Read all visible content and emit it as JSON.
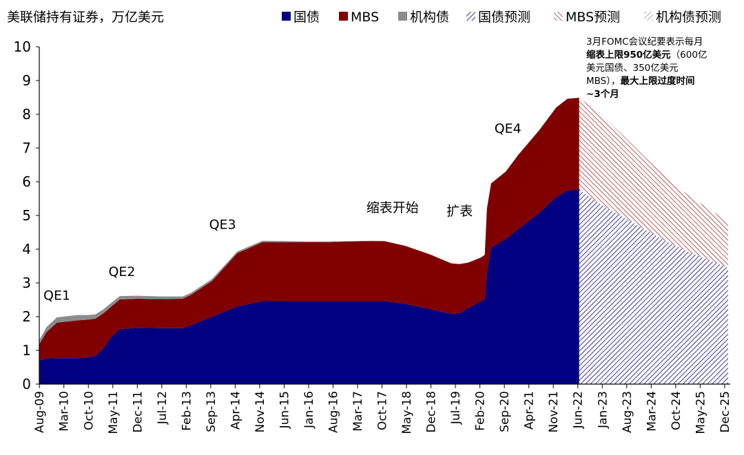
{
  "chart_data": {
    "type": "area",
    "title": "美联储持有证券，万亿美元",
    "ylim": [
      0,
      10
    ],
    "yticks": [
      0,
      1,
      2,
      3,
      4,
      5,
      6,
      7,
      8,
      9,
      10
    ],
    "xlim": [
      2009.58,
      2026.05
    ],
    "x_tick_labels": [
      "Aug-09",
      "Mar-10",
      "Oct-10",
      "May-11",
      "Dec-11",
      "Jul-12",
      "Feb-13",
      "Sep-13",
      "Apr-14",
      "Nov-14",
      "Jun-15",
      "Jan-16",
      "Aug-16",
      "Mar-17",
      "Oct-17",
      "May-18",
      "Dec-18",
      "Jul-19",
      "Feb-20",
      "Sep-20",
      "Apr-21",
      "Nov-21",
      "Jun-22",
      "Jan-23",
      "Aug-23",
      "Mar-24",
      "Oct-24",
      "May-25",
      "Dec-25"
    ],
    "legend": [
      {
        "name": "国债",
        "color": "#000080",
        "style": "solid"
      },
      {
        "name": "MBS",
        "color": "#800000",
        "style": "solid"
      },
      {
        "name": "机构债",
        "color": "#808080",
        "style": "solid"
      },
      {
        "name": "国债预测",
        "color": "#000080",
        "style": "hatched"
      },
      {
        "name": "MBS预测",
        "color": "#800000",
        "style": "hatched"
      },
      {
        "name": "机构债预测",
        "color": "#808080",
        "style": "hatched"
      }
    ],
    "series": [
      {
        "name": "国债",
        "x": [
          2009.58,
          2009.75,
          2010.0,
          2010.5,
          2010.75,
          2010.92,
          2011.1,
          2011.3,
          2011.5,
          2011.92,
          2012.5,
          2013.0,
          2013.2,
          2013.7,
          2014.3,
          2014.9,
          2015.5,
          2016.0,
          2016.5,
          2017.0,
          2017.5,
          2017.8,
          2018.3,
          2018.9,
          2019.4,
          2019.6,
          2019.8,
          2020.1,
          2020.2,
          2020.25,
          2020.35,
          2020.7,
          2021.0,
          2021.5,
          2021.9,
          2022.17,
          2022.45
        ],
        "values": [
          0.7,
          0.76,
          0.77,
          0.77,
          0.79,
          0.84,
          1.05,
          1.4,
          1.63,
          1.67,
          1.66,
          1.66,
          1.75,
          2.0,
          2.3,
          2.46,
          2.46,
          2.46,
          2.46,
          2.46,
          2.46,
          2.46,
          2.38,
          2.22,
          2.08,
          2.1,
          2.25,
          2.45,
          2.52,
          3.3,
          4.05,
          4.3,
          4.6,
          5.08,
          5.55,
          5.74,
          5.77
        ]
      },
      {
        "name": "MBS",
        "x": [
          2009.58,
          2009.75,
          2010.0,
          2010.5,
          2010.75,
          2010.92,
          2011.1,
          2011.3,
          2011.5,
          2011.92,
          2012.5,
          2013.0,
          2013.2,
          2013.7,
          2014.3,
          2014.9,
          2015.5,
          2016.0,
          2016.5,
          2017.0,
          2017.5,
          2017.8,
          2018.3,
          2018.9,
          2019.4,
          2019.6,
          2019.8,
          2020.1,
          2020.2,
          2020.25,
          2020.35,
          2020.7,
          2021.0,
          2021.5,
          2021.9,
          2022.17,
          2022.45
        ],
        "values": [
          0.48,
          0.78,
          1.05,
          1.12,
          1.12,
          1.1,
          1.04,
          0.9,
          0.88,
          0.86,
          0.86,
          0.87,
          0.9,
          1.06,
          1.58,
          1.75,
          1.75,
          1.75,
          1.75,
          1.77,
          1.78,
          1.78,
          1.72,
          1.62,
          1.5,
          1.46,
          1.35,
          1.3,
          1.31,
          1.9,
          1.9,
          2.0,
          2.2,
          2.45,
          2.65,
          2.72,
          2.72
        ]
      },
      {
        "name": "机构债",
        "x": [
          2009.58,
          2009.75,
          2010.0,
          2010.5,
          2010.75,
          2010.92,
          2011.1,
          2011.3,
          2011.5,
          2011.92,
          2012.5,
          2013.0,
          2013.2,
          2013.7,
          2014.3,
          2014.9,
          2015.5,
          2016.0,
          2016.5,
          2017.0,
          2017.5,
          2017.8,
          2018.3,
          2018.9,
          2019.4,
          2019.6,
          2019.8,
          2020.1,
          2020.2,
          2020.25,
          2020.35,
          2020.7,
          2021.0,
          2021.5,
          2021.9,
          2022.17,
          2022.45
        ],
        "values": [
          0.12,
          0.15,
          0.16,
          0.16,
          0.14,
          0.13,
          0.12,
          0.11,
          0.1,
          0.09,
          0.08,
          0.07,
          0.06,
          0.06,
          0.05,
          0.04,
          0.03,
          0.02,
          0.02,
          0.01,
          0.01,
          0.005,
          0.003,
          0.002,
          0.002,
          0.002,
          0.002,
          0.002,
          0.002,
          0.002,
          0.002,
          0.002,
          0.002,
          0.002,
          0.002,
          0.002,
          0.002
        ]
      },
      {
        "name": "国债预测",
        "x": [
          2022.45,
          2023.0,
          2023.5,
          2024.0,
          2024.5,
          2025.0,
          2025.5,
          2026.0
        ],
        "values": [
          5.77,
          5.3,
          4.95,
          4.6,
          4.25,
          3.95,
          3.7,
          3.45
        ]
      },
      {
        "name": "MBS预测",
        "x": [
          2022.45,
          2023.0,
          2023.5,
          2024.0,
          2024.5,
          2025.0,
          2025.5,
          2026.0
        ],
        "values": [
          2.72,
          2.67,
          2.42,
          2.15,
          1.9,
          1.7,
          1.53,
          1.37
        ]
      },
      {
        "name": "机构债预测",
        "x": [
          2022.45,
          2023.0,
          2023.5,
          2024.0,
          2024.5,
          2025.0,
          2025.5,
          2026.0
        ],
        "values": [
          0.002,
          0.002,
          0.002,
          0.002,
          0.002,
          0.002,
          0.002,
          0.002
        ]
      }
    ],
    "annotations": [
      {
        "text": "QE1",
        "x": 2010.0,
        "y": 2.5
      },
      {
        "text": "QE2",
        "x": 2011.55,
        "y": 3.2
      },
      {
        "text": "QE3",
        "x": 2013.95,
        "y": 4.6
      },
      {
        "text": "缩表开始",
        "x": 2018.0,
        "y": 5.1
      },
      {
        "text": "扩表",
        "x": 2019.6,
        "y": 5.0
      },
      {
        "text": "QE4",
        "x": 2020.75,
        "y": 7.45
      }
    ],
    "note": {
      "lines": [
        [
          {
            "t": "3月FOMC会议纪要表示每月",
            "b": false
          }
        ],
        [
          {
            "t": "缩表上限950亿美元",
            "b": true
          },
          {
            "t": "（600亿",
            "b": false
          }
        ],
        [
          {
            "t": "美元国债、350亿美元",
            "b": false
          }
        ],
        [
          {
            "t": "MBS），",
            "b": false
          },
          {
            "t": "最大上限过度时间",
            "b": true
          }
        ],
        [
          {
            "t": "~3个月",
            "b": true
          }
        ]
      ]
    }
  }
}
